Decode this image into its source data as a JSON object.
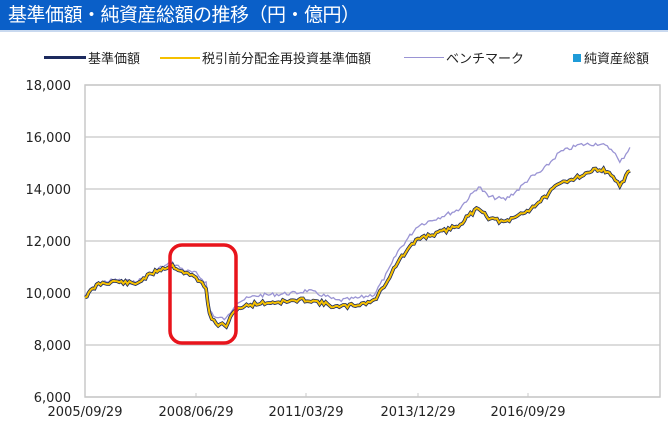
{
  "header": {
    "title": "基準価額・純資産総額の推移（円・億円）",
    "background_color": "#0a5fc8",
    "text_color": "#ffffff"
  },
  "legend": {
    "items": [
      {
        "label": "基準価額",
        "color": "#1c2a5e",
        "style": "thick-line"
      },
      {
        "label": "税引前分配金再投資基準価額",
        "color": "#f5c000",
        "style": "line"
      },
      {
        "label": "ベンチマーク",
        "color": "#9a94d4",
        "style": "thin-line"
      },
      {
        "label": "純資産総額",
        "color": "#1f9bd8",
        "style": "square"
      }
    ]
  },
  "annotation": {
    "type": "rounded-rectangle",
    "color": "#e8141c",
    "description": "highlight around 2008 drop"
  },
  "chart_data": {
    "type": "line",
    "title": "基準価額・純資産総額の推移（円・億円）",
    "xlabel": "",
    "ylabel": "",
    "ylim": [
      6000,
      18000
    ],
    "yticks": [
      "18,000",
      "16,000",
      "14,000",
      "12,000",
      "10,000",
      "8,000",
      "6,000"
    ],
    "ytick_values": [
      18000,
      16000,
      14000,
      12000,
      10000,
      8000,
      6000
    ],
    "xticks": [
      "2005/09/29",
      "2008/06/29",
      "2011/03/29",
      "2013/12/29",
      "2016/09/29"
    ],
    "grid": true,
    "legend_position": "top",
    "x": [
      "2005/09",
      "2006/01",
      "2006/06",
      "2006/12",
      "2007/03",
      "2007/07",
      "2007/11",
      "2008/03",
      "2008/06",
      "2008/09",
      "2008/10",
      "2008/12",
      "2009/03",
      "2009/06",
      "2009/12",
      "2010/06",
      "2010/12",
      "2011/03",
      "2011/08",
      "2011/12",
      "2012/06",
      "2012/11",
      "2013/03",
      "2013/06",
      "2013/12",
      "2014/06",
      "2014/12",
      "2015/06",
      "2015/09",
      "2016/02",
      "2016/06",
      "2016/09",
      "2017/01",
      "2017/06",
      "2017/12",
      "2018/06",
      "2018/10",
      "2018/12",
      "2019/03"
    ],
    "series": [
      {
        "name": "基準価額",
        "color": "#1c2a5e",
        "values": [
          9850,
          10350,
          10450,
          10350,
          10600,
          10900,
          11050,
          10750,
          10600,
          10200,
          9150,
          8800,
          8750,
          9400,
          9600,
          9650,
          9700,
          9750,
          9600,
          9450,
          9550,
          9700,
          10500,
          11200,
          12100,
          12300,
          12600,
          13300,
          12900,
          12700,
          13000,
          13200,
          13600,
          14200,
          14500,
          14800,
          14500,
          14100,
          14700
        ]
      },
      {
        "name": "税引前分配金再投資基準価額",
        "color": "#f5c000",
        "values": [
          9850,
          10350,
          10450,
          10350,
          10600,
          10900,
          11050,
          10750,
          10600,
          10200,
          9150,
          8800,
          8750,
          9400,
          9600,
          9650,
          9700,
          9750,
          9600,
          9450,
          9550,
          9700,
          10500,
          11200,
          12100,
          12300,
          12600,
          13300,
          12900,
          12700,
          13000,
          13200,
          13600,
          14200,
          14500,
          14800,
          14500,
          14100,
          14700
        ]
      },
      {
        "name": "ベンチマーク",
        "color": "#9a94d4",
        "values": [
          9900,
          10400,
          10500,
          10400,
          10650,
          10950,
          11150,
          10850,
          10750,
          10400,
          9350,
          9050,
          9000,
          9650,
          9900,
          9950,
          10000,
          10100,
          9900,
          9700,
          9800,
          9950,
          10800,
          11600,
          12600,
          12900,
          13200,
          14100,
          13700,
          13600,
          14000,
          14400,
          14700,
          15400,
          15700,
          15750,
          15500,
          15000,
          15600
        ]
      }
    ]
  }
}
